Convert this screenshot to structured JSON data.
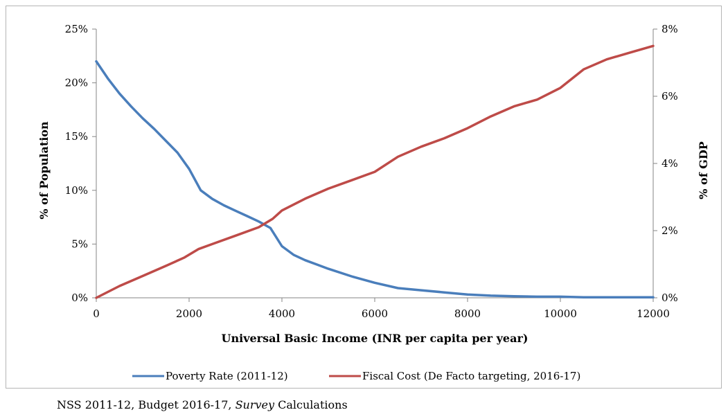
{
  "chart_data": {
    "type": "line",
    "xlabel": "Universal Basic Income (INR per capita per year)",
    "ylabel_left": "% of Population",
    "ylabel_right": "% of GDP",
    "xlim": [
      0,
      12000
    ],
    "ylim_left": [
      0,
      25
    ],
    "ylim_right": [
      0,
      8
    ],
    "x_ticks": [
      "0",
      "2000",
      "4000",
      "6000",
      "8000",
      "10000",
      "12000"
    ],
    "y_left_ticks": [
      "0%",
      "5%",
      "10%",
      "15%",
      "20%",
      "25%"
    ],
    "y_right_ticks": [
      "0%",
      "2%",
      "4%",
      "6%",
      "8%"
    ],
    "grid": false,
    "legend_position": "bottom",
    "series": [
      {
        "name": "Poverty Rate (2011-12)",
        "axis": "left",
        "color": "#4a7ebb",
        "x": [
          0,
          250,
          500,
          750,
          1000,
          1250,
          1500,
          1750,
          2000,
          2250,
          2500,
          2750,
          3000,
          3250,
          3500,
          3750,
          4000,
          4250,
          4500,
          4750,
          5000,
          5500,
          6000,
          6500,
          7000,
          7500,
          8000,
          8500,
          9000,
          9500,
          10000,
          10500,
          11000,
          11500,
          12000
        ],
        "y": [
          22.0,
          20.4,
          19.0,
          17.8,
          16.7,
          15.7,
          14.6,
          13.5,
          12.0,
          10.0,
          9.2,
          8.6,
          8.1,
          7.6,
          7.1,
          6.5,
          4.8,
          4.0,
          3.5,
          3.1,
          2.7,
          2.0,
          1.4,
          0.9,
          0.7,
          0.5,
          0.3,
          0.2,
          0.15,
          0.1,
          0.1,
          0.05,
          0.05,
          0.05,
          0.05
        ]
      },
      {
        "name": "Fiscal Cost (De Facto targeting, 2016-17)",
        "axis": "right",
        "color": "#be4b48",
        "x": [
          0,
          500,
          1000,
          1500,
          1900,
          2200,
          2500,
          3000,
          3500,
          3800,
          4000,
          4500,
          5000,
          5500,
          6000,
          6500,
          7000,
          7500,
          8000,
          8500,
          9000,
          9500,
          10000,
          10500,
          11000,
          11500,
          12000
        ],
        "y": [
          0.0,
          0.35,
          0.65,
          0.95,
          1.2,
          1.45,
          1.6,
          1.85,
          2.1,
          2.35,
          2.6,
          2.95,
          3.25,
          3.5,
          3.75,
          4.2,
          4.5,
          4.75,
          5.05,
          5.4,
          5.7,
          5.9,
          6.25,
          6.8,
          7.1,
          7.3,
          7.5
        ]
      }
    ]
  },
  "source_note": {
    "prefix": "NSS 2011-12, Budget 2016-17, ",
    "italic": "Survey",
    "suffix": " Calculations"
  }
}
